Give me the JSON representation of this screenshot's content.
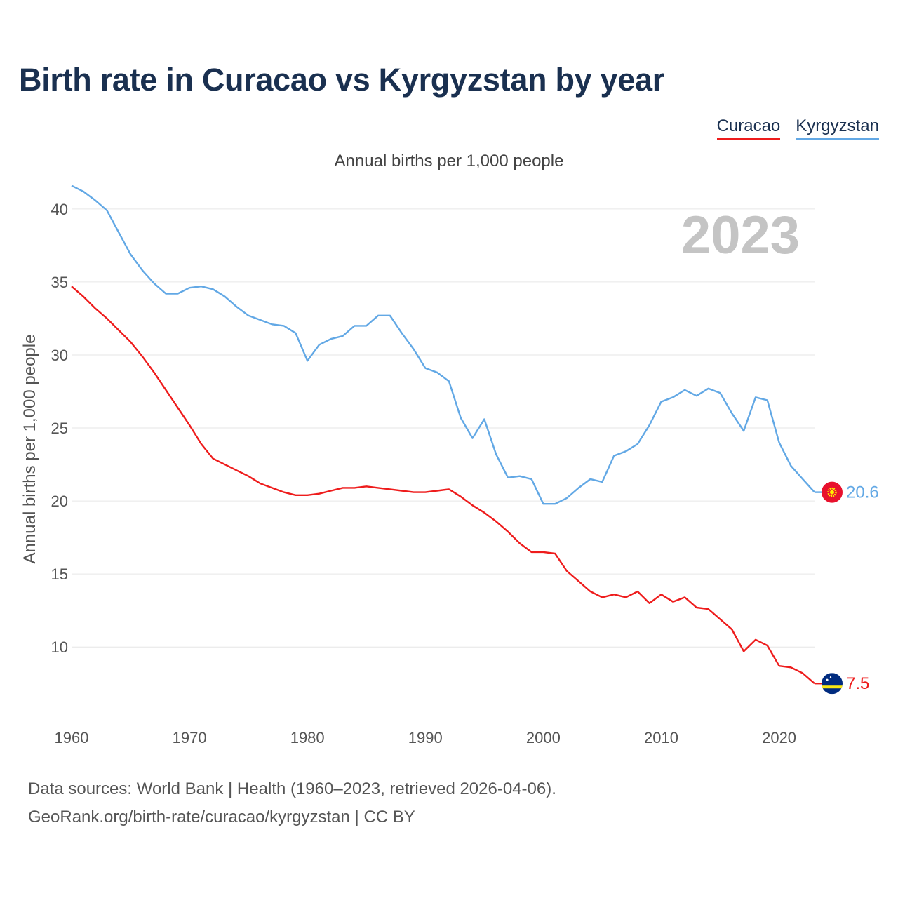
{
  "title": "Birth rate in Curacao vs Kyrgyzstan by year",
  "legend": [
    {
      "label": "Curacao",
      "color": "#ee1c1c"
    },
    {
      "label": "Kyrgyzstan",
      "color": "#62a8e5"
    }
  ],
  "subtitle": "Annual births per 1,000 people",
  "year_label": "2023",
  "footer": {
    "line1": "Data sources: World Bank | Health (1960–2023, retrieved 2026-04-06).",
    "line2": "GeoRank.org/birth-rate/curacao/kyrgyzstan | CC BY"
  },
  "chart_data": {
    "type": "line",
    "ylabel": "Annual births per 1,000 people",
    "xlabel": "",
    "xlim": [
      1960,
      2023
    ],
    "ylim": [
      5.3,
      42.3
    ],
    "yticks": [
      10,
      15,
      20,
      25,
      30,
      35,
      40
    ],
    "xticks": [
      1960,
      1970,
      1980,
      1990,
      2000,
      2010,
      2020
    ],
    "grid": true,
    "x": [
      1960,
      1961,
      1962,
      1963,
      1964,
      1965,
      1966,
      1967,
      1968,
      1969,
      1970,
      1971,
      1972,
      1973,
      1974,
      1975,
      1976,
      1977,
      1978,
      1979,
      1980,
      1981,
      1982,
      1983,
      1984,
      1985,
      1986,
      1987,
      1988,
      1989,
      1990,
      1991,
      1992,
      1993,
      1994,
      1995,
      1996,
      1997,
      1998,
      1999,
      2000,
      2001,
      2002,
      2003,
      2004,
      2005,
      2006,
      2007,
      2008,
      2009,
      2010,
      2011,
      2012,
      2013,
      2014,
      2015,
      2016,
      2017,
      2018,
      2019,
      2020,
      2021,
      2022,
      2023
    ],
    "series": [
      {
        "name": "Curacao",
        "color": "#ee1c1c",
        "end_label": "7.5",
        "flag": "curacao-flag-icon",
        "values": [
          34.7,
          34.0,
          33.2,
          32.5,
          31.7,
          30.9,
          29.9,
          28.8,
          27.6,
          26.4,
          25.2,
          23.9,
          22.9,
          22.5,
          22.1,
          21.7,
          21.2,
          20.9,
          20.6,
          20.4,
          20.4,
          20.5,
          20.7,
          20.9,
          20.9,
          21.0,
          20.9,
          20.8,
          20.7,
          20.6,
          20.6,
          20.7,
          20.8,
          20.3,
          19.7,
          19.2,
          18.6,
          17.9,
          17.1,
          16.5,
          16.5,
          16.4,
          15.2,
          14.5,
          13.8,
          13.4,
          13.6,
          13.4,
          13.8,
          13.0,
          13.6,
          13.1,
          13.4,
          12.7,
          12.6,
          11.9,
          11.2,
          9.7,
          10.5,
          10.1,
          8.7,
          8.6,
          8.2,
          7.5
        ]
      },
      {
        "name": "Kyrgyzstan",
        "color": "#62a8e5",
        "end_label": "20.6",
        "flag": "kyrgyzstan-flag-icon",
        "values": [
          41.6,
          41.2,
          40.6,
          39.9,
          38.4,
          36.9,
          35.8,
          34.9,
          34.2,
          34.2,
          34.6,
          34.7,
          34.5,
          34.0,
          33.3,
          32.7,
          32.4,
          32.1,
          32.0,
          31.5,
          29.6,
          30.7,
          31.1,
          31.3,
          32.0,
          32.0,
          32.7,
          32.7,
          31.5,
          30.4,
          29.1,
          28.8,
          28.2,
          25.7,
          24.3,
          25.6,
          23.2,
          21.6,
          21.7,
          21.5,
          19.8,
          19.8,
          20.2,
          20.9,
          21.5,
          21.3,
          23.1,
          23.4,
          23.9,
          25.2,
          26.8,
          27.1,
          27.6,
          27.2,
          27.7,
          27.4,
          26.0,
          24.8,
          27.1,
          26.9,
          24.0,
          22.4,
          21.5,
          20.6
        ]
      }
    ]
  }
}
